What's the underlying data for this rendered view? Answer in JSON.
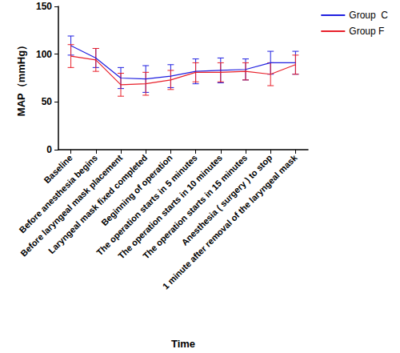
{
  "chart_data": {
    "type": "line",
    "x_label": "Time",
    "y_label": "MAP（mmHg）",
    "categories": [
      "Baseline",
      "Before anesthesia begins",
      "Before laryngeal mask placement",
      "Laryngeal mask fixed completed",
      "Beginning of operation",
      "The operation starts in 5 minutes",
      "The operation starts in 10 minutes",
      "The operation starts in 15 minutes",
      "Anesthesia ( surgery ) to stop",
      "1 minute after removal of the laryngeal mask"
    ],
    "series": [
      {
        "name": "Group  C",
        "color": "#1f1fe0",
        "marker": "none",
        "values": [
          109,
          96,
          75,
          74,
          77,
          82,
          83,
          84,
          91,
          91
        ],
        "errors": [
          10,
          10,
          11,
          14,
          12,
          13,
          13,
          11,
          12,
          12
        ]
      },
      {
        "name": "Group F",
        "color": "#e8202a",
        "marker": "none",
        "values": [
          98,
          94,
          68,
          69,
          73,
          81,
          81,
          82,
          79,
          89
        ],
        "errors": [
          12,
          12,
          12,
          12,
          10,
          10,
          10,
          9,
          12,
          10
        ]
      }
    ],
    "ylim": [
      0,
      150
    ],
    "yticks": [
      0,
      50,
      100,
      150
    ],
    "grid": false,
    "legend": "top-right"
  }
}
